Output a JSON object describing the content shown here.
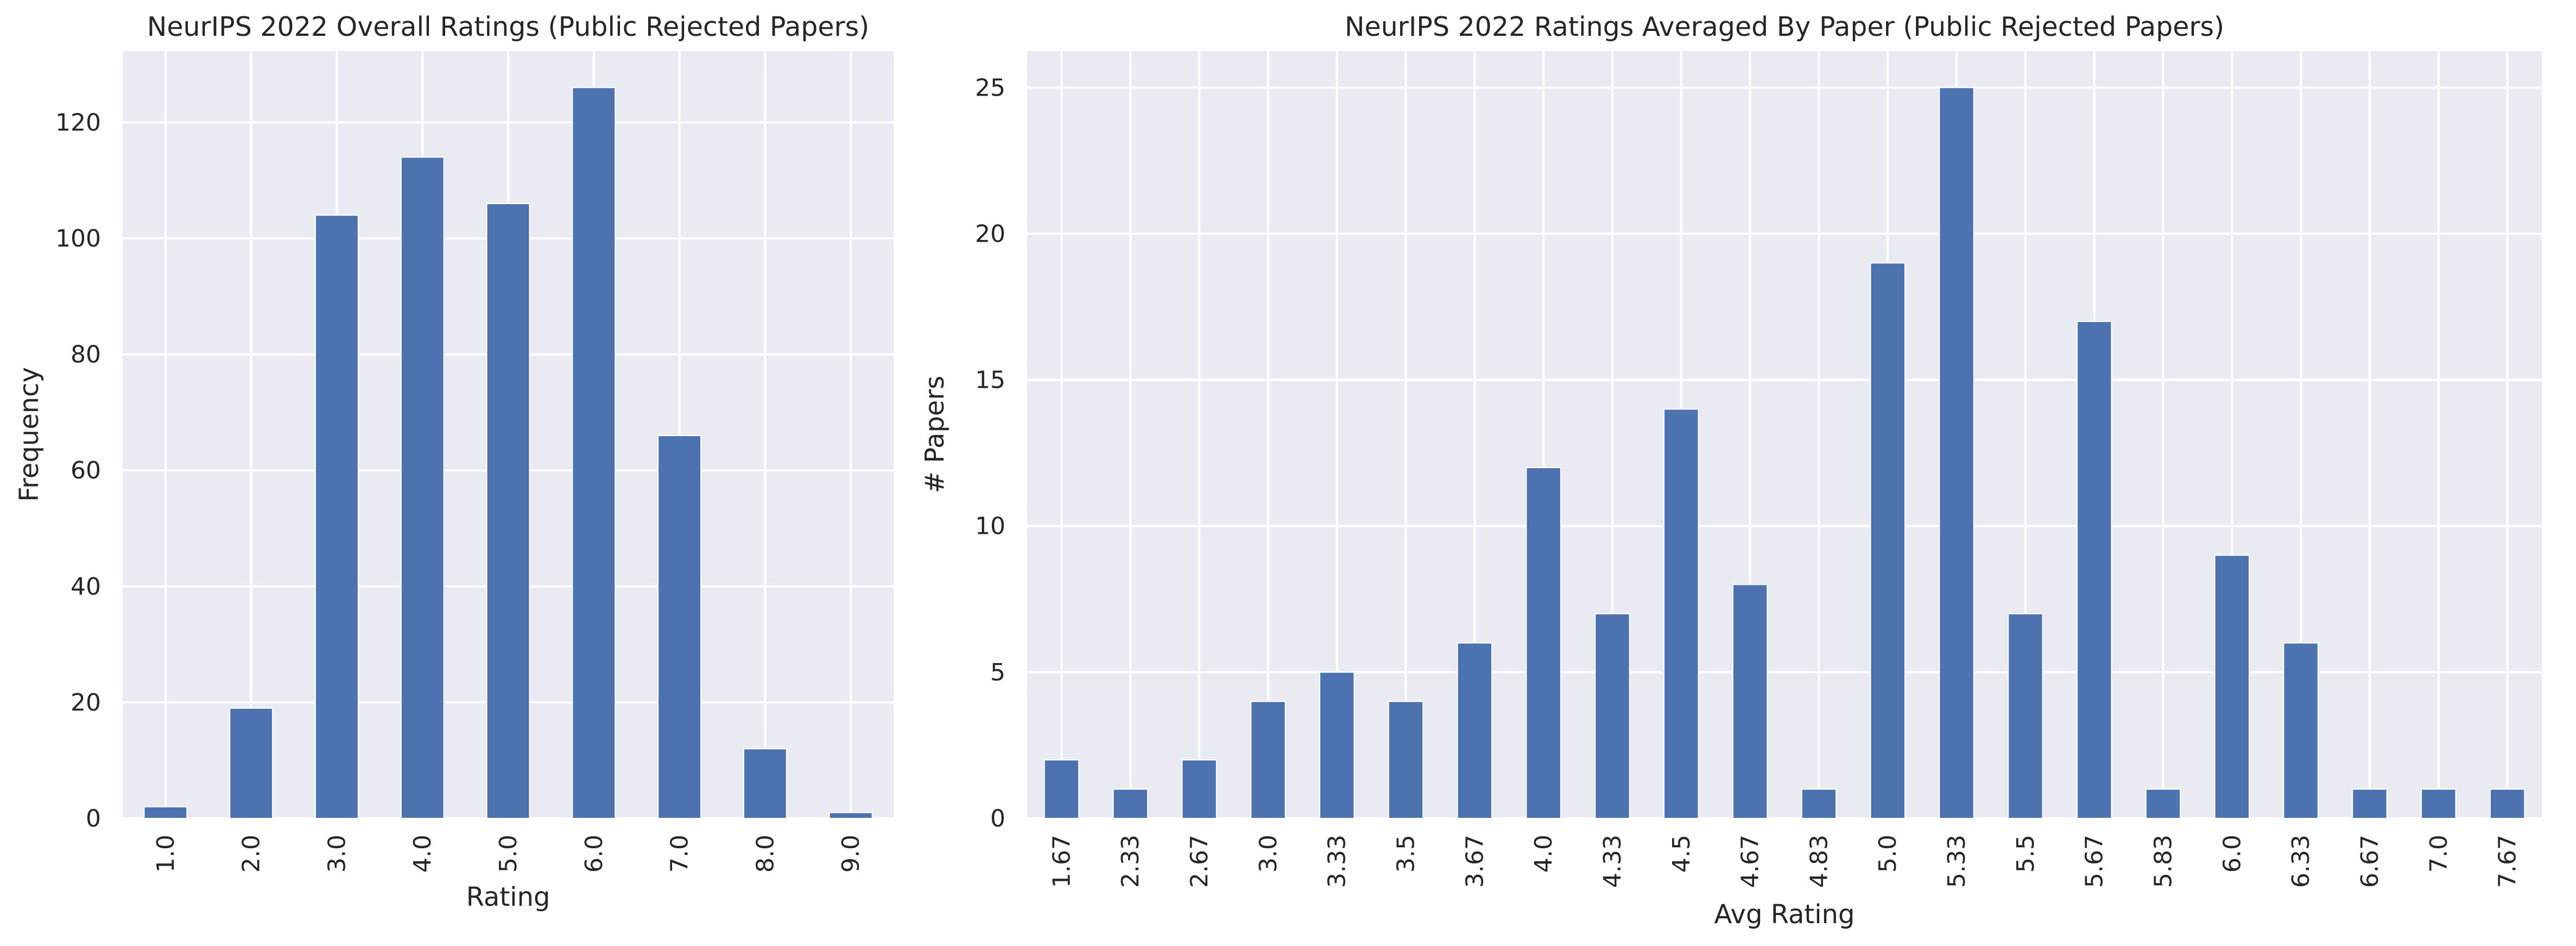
{
  "chart_data": [
    {
      "type": "bar",
      "title": "NeurIPS 2022 Overall Ratings (Public Rejected Papers)",
      "xlabel": "Rating",
      "ylabel": "Frequency",
      "categories": [
        "1.0",
        "2.0",
        "3.0",
        "4.0",
        "5.0",
        "6.0",
        "7.0",
        "8.0",
        "9.0"
      ],
      "values": [
        2,
        19,
        104,
        114,
        106,
        126,
        66,
        12,
        1
      ],
      "ylim": [
        0,
        132.3
      ],
      "yticks": [
        0,
        20,
        40,
        60,
        80,
        100,
        120
      ],
      "grid": true,
      "bar_color": "#4c72b0",
      "background_color": "#eaeaf2"
    },
    {
      "type": "bar",
      "title": "NeurIPS 2022 Ratings Averaged By Paper (Public Rejected Papers)",
      "xlabel": "Avg Rating",
      "ylabel": "# Papers",
      "categories": [
        "1.67",
        "2.33",
        "2.67",
        "3.0",
        "3.33",
        "3.5",
        "3.67",
        "4.0",
        "4.33",
        "4.5",
        "4.67",
        "4.83",
        "5.0",
        "5.33",
        "5.5",
        "5.67",
        "5.83",
        "6.0",
        "6.33",
        "6.67",
        "7.0",
        "7.67"
      ],
      "values": [
        2,
        1,
        2,
        4,
        5,
        4,
        6,
        12,
        7,
        14,
        8,
        1,
        19,
        25,
        7,
        17,
        1,
        9,
        6,
        1,
        1,
        1
      ],
      "ylim": [
        0,
        26.25
      ],
      "yticks": [
        0,
        5,
        10,
        15,
        20,
        25
      ],
      "grid": true,
      "bar_color": "#4c72b0",
      "background_color": "#eaeaf2"
    }
  ]
}
